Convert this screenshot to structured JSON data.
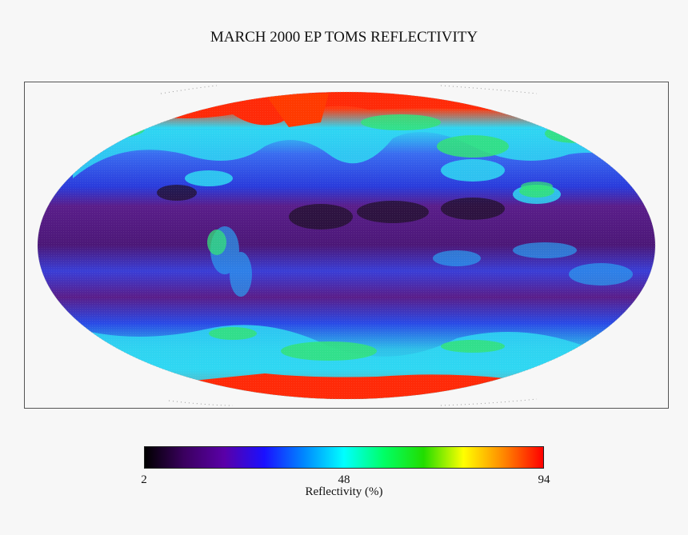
{
  "title": "MARCH 2000 EP TOMS REFLECTIVITY",
  "map": {
    "projection": "Robinson",
    "variable": "reflectivity"
  },
  "colorbar": {
    "min_label": "2",
    "mid_label": "48",
    "max_label": "94",
    "label": "Reflectivity (%)",
    "colors": [
      "#000000",
      "#3b0060",
      "#5a00a8",
      "#1a10ff",
      "#0088ff",
      "#00ffff",
      "#00ff66",
      "#22dd00",
      "#ffff00",
      "#ff8800",
      "#ff0000"
    ]
  },
  "palette": {
    "dark_tropics": "#20102a",
    "purple_low": "#5a1e8a",
    "blue_mid": "#2a3cdc",
    "cyan_clouds": "#2fd7f2",
    "green_high": "#33e27a",
    "red_ice": "#ff2a08",
    "orange_ice": "#ff6a10"
  }
}
